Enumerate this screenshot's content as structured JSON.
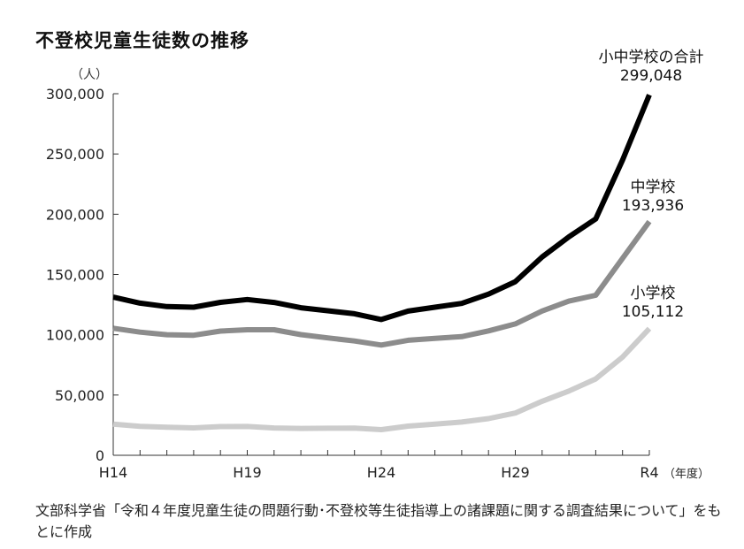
{
  "title": "不登校児童生徒数の推移",
  "source_note": "文部科学省「令和４年度児童生徒の問題行動･不登校等生徒指導上の諸課題に関する調査結果について」をもとに作成",
  "chart_data": {
    "type": "line",
    "y_unit": "（人）",
    "x_unit": "（年度）",
    "ylim": [
      0,
      300000
    ],
    "y_ticks": [
      0,
      50000,
      100000,
      150000,
      200000,
      250000,
      300000
    ],
    "y_tick_labels": [
      "0",
      "50,000",
      "100,000",
      "150,000",
      "200,000",
      "250,000",
      "300,000"
    ],
    "x_tick_labels": [
      "H14",
      "H19",
      "H24",
      "H29",
      "R4"
    ],
    "x_tick_label_positions": [
      0,
      5,
      10,
      15,
      20
    ],
    "n_points": 21,
    "series": [
      {
        "name": "小中学校の合計",
        "end_label": "299,048",
        "color": "#000000",
        "values": [
          131252,
          126226,
          123358,
          122897,
          126894,
          129255,
          126805,
          122432,
          119891,
          117458,
          112689,
          119617,
          122897,
          125991,
          133683,
          144031,
          164528,
          181272,
          196127,
          244940,
          299048
        ]
      },
      {
        "name": "中学校",
        "end_label": "193,936",
        "color": "#8c8c8c",
        "values": [
          105383,
          102149,
          100040,
          99578,
          103069,
          104153,
          104153,
          100105,
          97428,
          94836,
          91446,
          95442,
          97033,
          98408,
          103235,
          108999,
          119687,
          127922,
          132777,
          163442,
          193936
        ]
      },
      {
        "name": "小学校",
        "end_label": "105,112",
        "color": "#cccccc",
        "values": [
          25869,
          24077,
          23318,
          22709,
          23825,
          23927,
          22652,
          22327,
          22463,
          22622,
          21243,
          24175,
          25864,
          27583,
          30448,
          35032,
          44841,
          53350,
          63350,
          81498,
          105112
        ]
      }
    ]
  }
}
